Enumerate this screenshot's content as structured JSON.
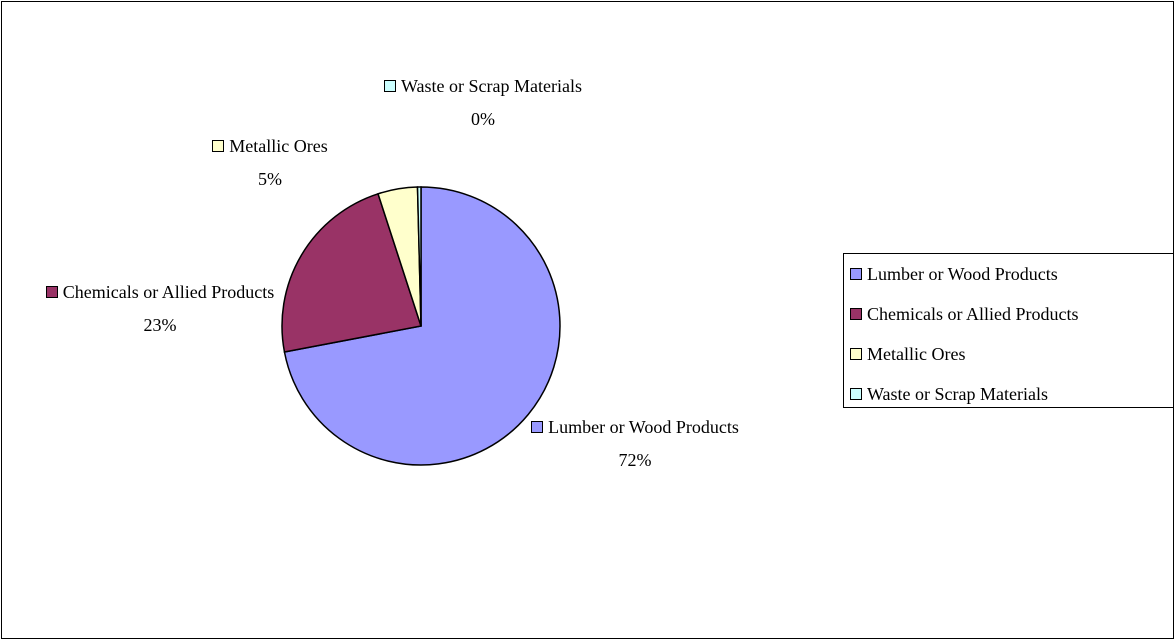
{
  "chart_data": {
    "type": "pie",
    "categories": [
      "Lumber or Wood Products",
      "Chemicals or Allied Products",
      "Metallic Ores",
      "Waste or Scrap Materials"
    ],
    "values": [
      72,
      23,
      4.6,
      0.4
    ],
    "value_labels": [
      "72%",
      "23%",
      "5%",
      "0%"
    ],
    "colors": [
      "#9999ff",
      "#993366",
      "#ffffcc",
      "#ccffff"
    ],
    "legend": "right"
  }
}
